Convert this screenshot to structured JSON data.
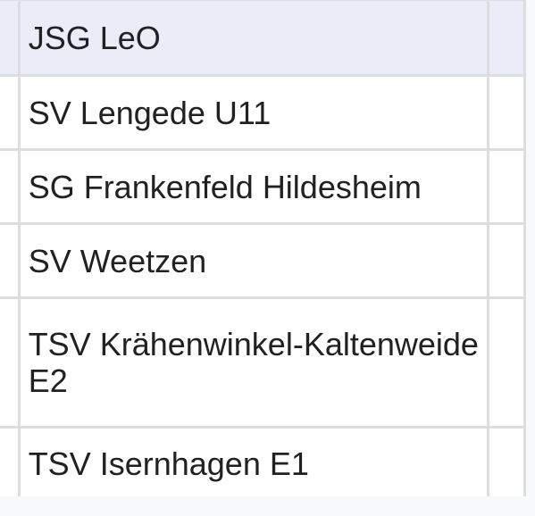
{
  "table": {
    "rows": [
      {
        "name": "JSG LeO"
      },
      {
        "name": "SV Lengede U11"
      },
      {
        "name": "SG Frankenfeld Hildesheim"
      },
      {
        "name": "SV Weetzen"
      },
      {
        "name": "TSV Krähenwinkel-Kaltenweide E2"
      },
      {
        "name": "TSV Isernhagen E1"
      }
    ]
  },
  "colors": {
    "row_highlight": "#eaecf8",
    "row_default": "#ffffff",
    "border": "#dcdde1",
    "text": "#202122",
    "page_background": "#f8f9fa"
  }
}
